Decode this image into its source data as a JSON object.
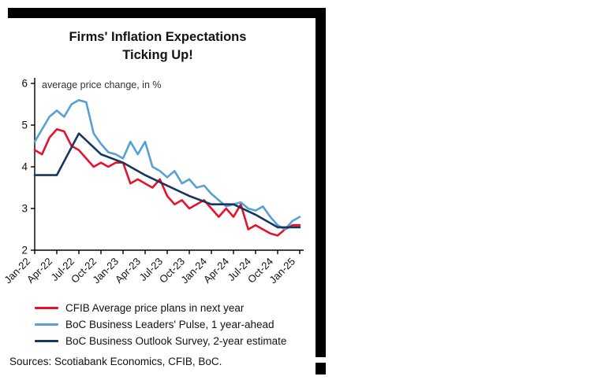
{
  "chart_data": {
    "type": "line",
    "title": "Firms' Inflation Expectations Ticking Up!",
    "y_annotation": "average price change, in %",
    "ylim": [
      2,
      6
    ],
    "yticks": [
      2,
      3,
      4,
      5,
      6
    ],
    "months": 37,
    "x_tick_labels": [
      "Jan-22",
      "Apr-22",
      "Jul-22",
      "Oct-22",
      "Jan-23",
      "Apr-23",
      "Jul-23",
      "Oct-23",
      "Jan-24",
      "Apr-24",
      "Jul-24",
      "Oct-24",
      "Jan-25"
    ],
    "legend_position": "below",
    "grid": false,
    "series": [
      {
        "name": "CFIB Average price plans in next year",
        "color": "#e8112d",
        "width": 2.6,
        "values": [
          4.4,
          4.3,
          4.7,
          4.9,
          4.85,
          4.5,
          4.4,
          4.2,
          4.0,
          4.1,
          4.0,
          4.1,
          4.1,
          3.6,
          3.7,
          3.6,
          3.5,
          3.7,
          3.3,
          3.1,
          3.2,
          3.0,
          3.1,
          3.2,
          3.0,
          2.8,
          3.0,
          2.8,
          3.1,
          2.5,
          2.6,
          2.5,
          2.4,
          2.35,
          2.5,
          2.6,
          2.6
        ]
      },
      {
        "name": "BoC Business Leaders' Pulse, 1 year-ahead",
        "color": "#57a0d3",
        "width": 2.6,
        "values": [
          4.6,
          4.9,
          5.2,
          5.35,
          5.2,
          5.5,
          5.6,
          5.55,
          4.8,
          4.55,
          4.35,
          4.3,
          4.2,
          4.6,
          4.3,
          4.6,
          4.0,
          3.9,
          3.75,
          3.9,
          3.6,
          3.7,
          3.5,
          3.55,
          3.35,
          3.2,
          3.05,
          3.1,
          3.15,
          3.0,
          2.95,
          3.05,
          2.8,
          2.6,
          2.5,
          2.7,
          2.8
        ]
      },
      {
        "name": "BoC Business Outlook Survey, 2-year estimate",
        "color": "#17365d",
        "width": 2.6,
        "x_indices": [
          0,
          3,
          6,
          9,
          12,
          15,
          18,
          21,
          24,
          27,
          30,
          33,
          36
        ],
        "values": [
          3.8,
          3.8,
          4.8,
          4.3,
          4.1,
          3.8,
          3.55,
          3.3,
          3.1,
          3.1,
          2.85,
          2.55,
          2.55
        ]
      }
    ],
    "sources": "Sources: Scotiabank Economics, CFIB, BoC."
  }
}
